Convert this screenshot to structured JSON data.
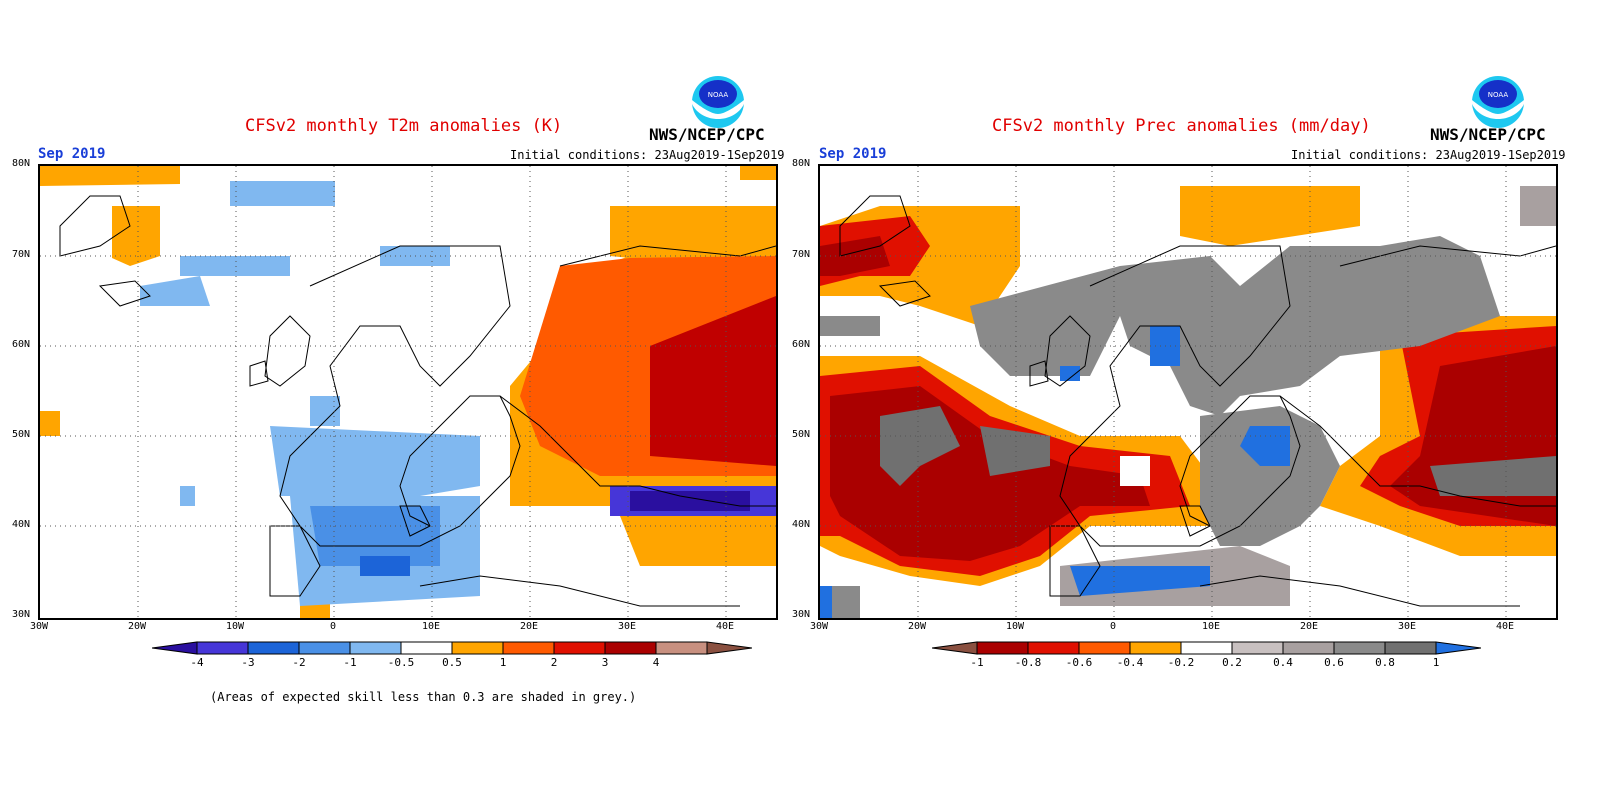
{
  "left": {
    "title": "CFSv2 monthly T2m anomalies (K)",
    "agency": "NWS/NCEP/CPC",
    "month": "Sep 2019",
    "initial": "Initial conditions: 23Aug2019-1Sep2019",
    "colorbar": {
      "labels": [
        "-4",
        "-3",
        "-2",
        "-1",
        "-0.5",
        "0.5",
        "1",
        "2",
        "3",
        "4"
      ],
      "colors": [
        "#2a0f9f",
        "#4636d8",
        "#1c64d8",
        "#4a90e6",
        "#80b8f0",
        "#ffffff",
        "#ffa500",
        "#ff5a00",
        "#e01000",
        "#aa0000",
        "#c89080",
        "#8a5040"
      ]
    },
    "footnote": "(Areas of expected skill less than 0.3 are shaded in grey.)"
  },
  "right": {
    "title": "CFSv2 monthly Prec anomalies (mm/day)",
    "agency": "NWS/NCEP/CPC",
    "month": "Sep 2019",
    "initial": "Initial conditions: 23Aug2019-1Sep2019",
    "colorbar": {
      "labels": [
        "-1",
        "-0.8",
        "-0.6",
        "-0.4",
        "-0.2",
        "0.2",
        "0.4",
        "0.6",
        "0.8",
        "1"
      ],
      "colors": [
        "#8a5040",
        "#aa0000",
        "#e01000",
        "#ff5a00",
        "#ffa500",
        "#ffffff",
        "#c8c0c0",
        "#a8a0a0",
        "#8a8a8a",
        "#707070",
        "#2070e0"
      ]
    }
  },
  "axes": {
    "lat_labels": [
      "80N",
      "70N",
      "60N",
      "50N",
      "40N",
      "30N"
    ],
    "lon_labels": [
      "30W",
      "20W",
      "10W",
      "0",
      "10E",
      "20E",
      "30E",
      "40E"
    ]
  },
  "logo_text": "NOAA"
}
